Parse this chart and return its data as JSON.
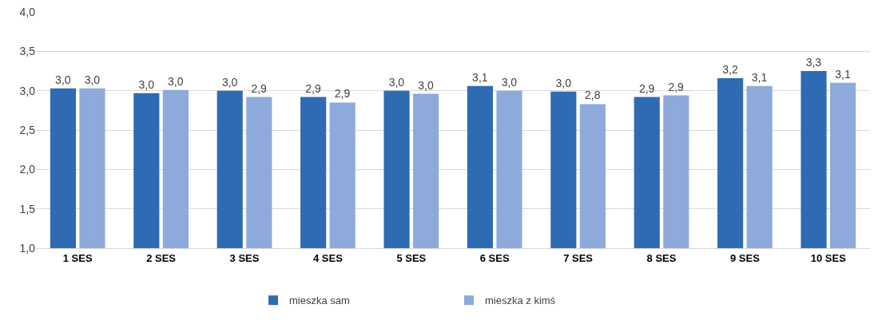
{
  "chart_data": {
    "type": "bar",
    "categories": [
      "1 SES",
      "2 SES",
      "3 SES",
      "4 SES",
      "5 SES",
      "6 SES",
      "7 SES",
      "8 SES",
      "9 SES",
      "10 SES"
    ],
    "series": [
      {
        "name": "mieszka sam",
        "color": "#2f6bb3",
        "values": [
          3.03,
          2.97,
          3.0,
          2.92,
          3.0,
          3.06,
          2.99,
          2.92,
          3.16,
          3.25
        ],
        "value_labels": [
          "3,0",
          "3,0",
          "3,0",
          "2,9",
          "3,0",
          "3,1",
          "3,0",
          "2,9",
          "3,2",
          "3,3"
        ]
      },
      {
        "name": "mieszka z kimś",
        "color": "#8eaadb",
        "values": [
          3.03,
          3.01,
          2.92,
          2.85,
          2.96,
          3.0,
          2.83,
          2.94,
          3.06,
          3.1
        ],
        "value_labels": [
          "3,0",
          "3,0",
          "2,9",
          "2,9",
          "3,0",
          "3,0",
          "2,8",
          "2,9",
          "3,1",
          "3,1"
        ]
      }
    ],
    "ylim": [
      1,
      4
    ],
    "yticks": [
      {
        "value": 1,
        "label": "1,0"
      },
      {
        "value": 1.5,
        "label": "1,5"
      },
      {
        "value": 2,
        "label": "2,0"
      },
      {
        "value": 2.5,
        "label": "2,5"
      },
      {
        "value": 3,
        "label": "3,0"
      },
      {
        "value": 3.5,
        "label": "3,5"
      },
      {
        "value": 4,
        "label": "4,0"
      }
    ],
    "grid": "y",
    "legend": "bottom"
  }
}
